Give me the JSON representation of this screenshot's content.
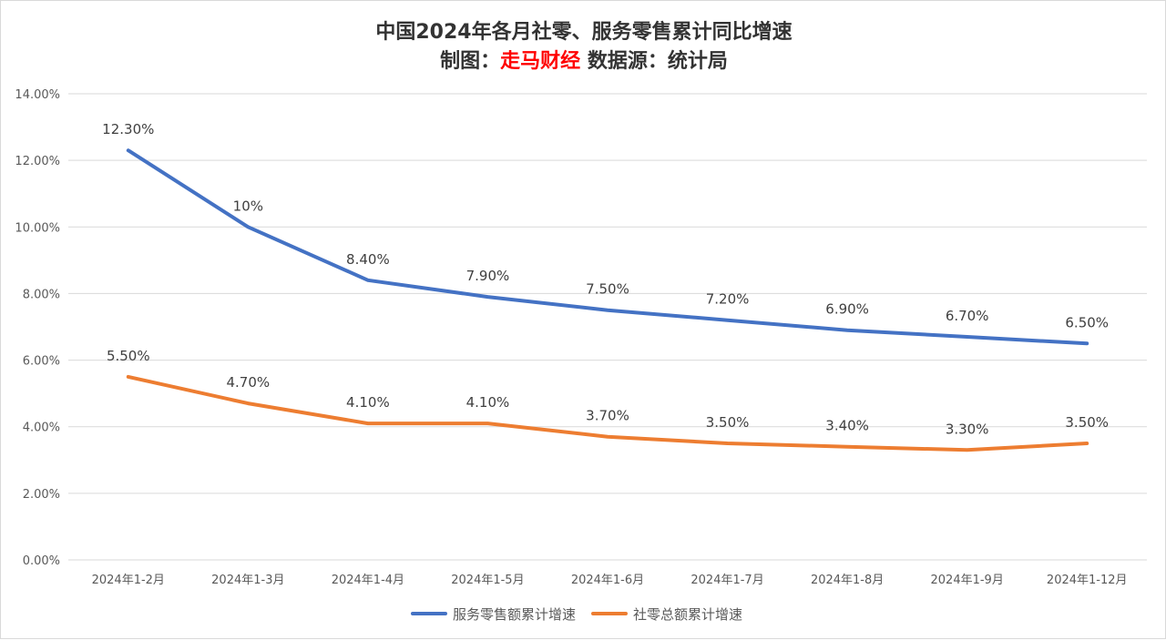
{
  "title": {
    "main": "中国2024年各月社零、服务零售累计同比增速",
    "credit_prefix": "制图：",
    "credit_brand": "走马财经",
    "credit_source": " 数据源：统计局"
  },
  "colors": {
    "series_1": "#4472c4",
    "series_2": "#ed7d31",
    "grid": "#d9d9d9",
    "brand": "#ff0000"
  },
  "chart_data": {
    "type": "line",
    "categories": [
      "2024年1-2月",
      "2024年1-3月",
      "2024年1-4月",
      "2024年1-5月",
      "2024年1-6月",
      "2024年1-7月",
      "2024年1-8月",
      "2024年1-9月",
      "2024年1-12月"
    ],
    "y_ticks": [
      "0.00%",
      "2.00%",
      "4.00%",
      "6.00%",
      "8.00%",
      "10.00%",
      "12.00%",
      "14.00%"
    ],
    "ylim": [
      0,
      14
    ],
    "grid": true,
    "legend_position": "bottom",
    "series": [
      {
        "name": "服务零售额累计增速",
        "values": [
          12.3,
          10,
          8.4,
          7.9,
          7.5,
          7.2,
          6.9,
          6.7,
          6.5
        ],
        "labels": [
          "12.30%",
          "10%",
          "8.40%",
          "7.90%",
          "7.50%",
          "7.20%",
          "6.90%",
          "6.70%",
          "6.50%"
        ]
      },
      {
        "name": "社零总额累计增速",
        "values": [
          5.5,
          4.7,
          4.1,
          4.1,
          3.7,
          3.5,
          3.4,
          3.3,
          3.5
        ],
        "labels": [
          "5.50%",
          "4.70%",
          "4.10%",
          "4.10%",
          "3.70%",
          "3.50%",
          "3.40%",
          "3.30%",
          "3.50%"
        ]
      }
    ]
  }
}
